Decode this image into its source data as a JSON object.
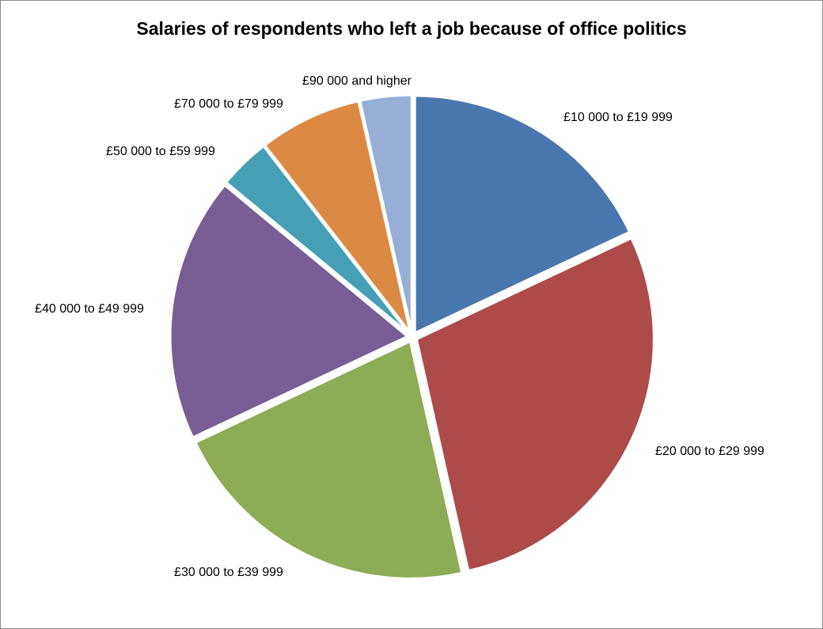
{
  "chart_data": {
    "type": "pie",
    "title": "Salaries of respondents who left a job because of office politics",
    "categories": [
      "£10 000 to £19 999",
      "£20 000 to £29 999",
      "£30 000 to £39 999",
      "£40 000 to £49 999",
      "£50 000 to £59 999",
      "£70 000 to £79 999",
      "£90 000 and higher"
    ],
    "values": [
      18,
      28.5,
      21.5,
      18,
      3.5,
      7,
      3.5
    ],
    "colors": [
      "#4a78ae",
      "#ad4b4a",
      "#8eab55",
      "#785e95",
      "#459fb5",
      "#dc8a43",
      "#97afd6"
    ],
    "legend": "none",
    "data_labels": "outside"
  }
}
